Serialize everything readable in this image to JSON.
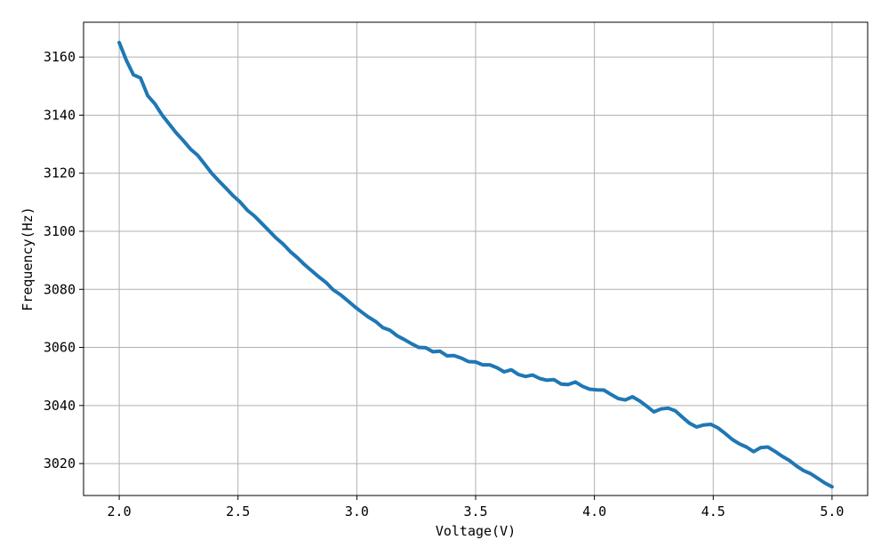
{
  "chart_data": {
    "type": "line",
    "title": "",
    "xlabel": "Voltage(V)",
    "ylabel": "Frequency(Hz)",
    "xlim": [
      1.85,
      5.15
    ],
    "ylim": [
      3009,
      3172
    ],
    "grid": true,
    "legend": "none",
    "x_ticks": [
      {
        "value": 2.0,
        "label": "2.0"
      },
      {
        "value": 2.5,
        "label": "2.5"
      },
      {
        "value": 3.0,
        "label": "3.0"
      },
      {
        "value": 3.5,
        "label": "3.5"
      },
      {
        "value": 4.0,
        "label": "4.0"
      },
      {
        "value": 4.5,
        "label": "4.5"
      },
      {
        "value": 5.0,
        "label": "5.0"
      }
    ],
    "y_ticks": [
      {
        "value": 3020,
        "label": "3020"
      },
      {
        "value": 3040,
        "label": "3040"
      },
      {
        "value": 3060,
        "label": "3060"
      },
      {
        "value": 3080,
        "label": "3080"
      },
      {
        "value": 3100,
        "label": "3100"
      },
      {
        "value": 3120,
        "label": "3120"
      },
      {
        "value": 3140,
        "label": "3140"
      },
      {
        "value": 3160,
        "label": "3160"
      }
    ],
    "series": [
      {
        "color": "#1f77b4",
        "x": [
          2.0,
          2.03,
          2.06,
          2.09,
          2.12,
          2.15,
          2.18,
          2.21,
          2.24,
          2.27,
          2.3,
          2.33,
          2.36,
          2.39,
          2.42,
          2.45,
          2.48,
          2.51,
          2.54,
          2.57,
          2.6,
          2.63,
          2.66,
          2.69,
          2.72,
          2.75,
          2.78,
          2.81,
          2.84,
          2.87,
          2.9,
          2.93,
          2.96,
          2.99,
          3.02,
          3.05,
          3.08,
          3.11,
          3.14,
          3.17,
          3.2,
          3.23,
          3.26,
          3.29,
          3.32,
          3.35,
          3.38,
          3.41,
          3.44,
          3.47,
          3.5,
          3.53,
          3.56,
          3.59,
          3.62,
          3.65,
          3.68,
          3.71,
          3.74,
          3.77,
          3.8,
          3.83,
          3.86,
          3.89,
          3.92,
          3.95,
          3.98,
          4.01,
          4.04,
          4.07,
          4.1,
          4.13,
          4.16,
          4.19,
          4.22,
          4.25,
          4.28,
          4.31,
          4.34,
          4.37,
          4.4,
          4.43,
          4.46,
          4.49,
          4.52,
          4.55,
          4.58,
          4.61,
          4.64,
          4.67,
          4.7,
          4.73,
          4.76,
          4.79,
          4.82,
          4.85,
          4.88,
          4.91,
          4.94,
          4.97,
          5.0
        ],
        "y": [
          3165.0,
          3158.9,
          3153.9,
          3152.8,
          3146.7,
          3143.9,
          3140.1,
          3137.0,
          3133.9,
          3131.2,
          3128.3,
          3126.2,
          3123.1,
          3119.9,
          3117.3,
          3114.8,
          3112.2,
          3110.0,
          3107.2,
          3105.2,
          3102.7,
          3100.2,
          3097.7,
          3095.6,
          3093.0,
          3090.9,
          3088.5,
          3086.4,
          3084.3,
          3082.4,
          3079.9,
          3078.2,
          3076.2,
          3074.1,
          3072.2,
          3070.4,
          3068.9,
          3066.8,
          3065.9,
          3064.0,
          3062.7,
          3061.3,
          3060.0,
          3059.9,
          3058.5,
          3058.7,
          3057.1,
          3057.2,
          3056.3,
          3055.1,
          3055.0,
          3054.0,
          3054.0,
          3053.0,
          3051.6,
          3052.3,
          3050.7,
          3050.0,
          3050.5,
          3049.3,
          3048.7,
          3048.9,
          3047.4,
          3047.2,
          3048.1,
          3046.6,
          3045.6,
          3045.4,
          3045.3,
          3043.8,
          3042.4,
          3041.9,
          3043.0,
          3041.6,
          3039.8,
          3037.8,
          3038.8,
          3039.1,
          3038.2,
          3036.0,
          3033.9,
          3032.6,
          3033.3,
          3033.5,
          3032.3,
          3030.4,
          3028.3,
          3026.8,
          3025.7,
          3024.1,
          3025.5,
          3025.7,
          3024.2,
          3022.5,
          3021.1,
          3019.2,
          3017.6,
          3016.5,
          3014.9,
          3013.3,
          3012.0
        ]
      }
    ]
  }
}
